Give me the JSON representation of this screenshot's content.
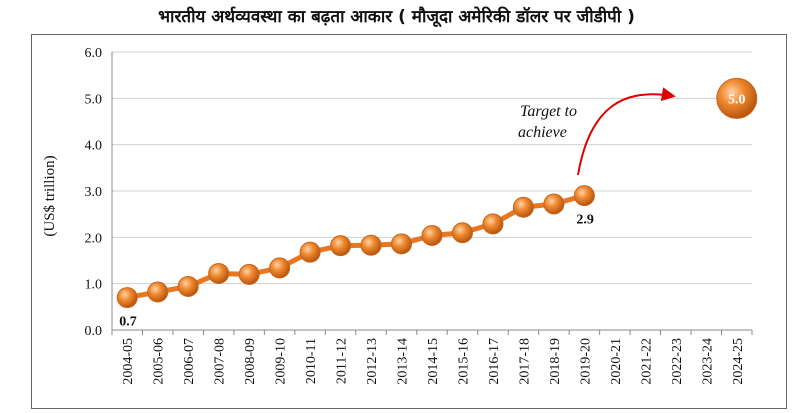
{
  "title": "भारतीय अर्थव्यवस्था का बढ़ता आकार ( मौजूदा अमेरिकी डॉलर पर जीडीपी )",
  "chart_data": {
    "type": "line",
    "title": "भारतीय अर्थव्यवस्था का बढ़ता आकार ( मौजूदा अमेरिकी डॉलर पर जीडीपी )",
    "xlabel": "",
    "ylabel": "(US$ trillion)",
    "ylim": [
      0,
      6
    ],
    "yticks": [
      "0.0",
      "1.0",
      "2.0",
      "3.0",
      "4.0",
      "5.0",
      "6.0"
    ],
    "grid": true,
    "categories": [
      "2004-05",
      "2005-06",
      "2006-07",
      "2007-08",
      "2008-09",
      "2009-10",
      "2010-11",
      "2011-12",
      "2012-13",
      "2013-14",
      "2014-15",
      "2015-16",
      "2016-17",
      "2017-18",
      "2018-19",
      "2019-20",
      "2020-21",
      "2021-22",
      "2022-23",
      "2023-24",
      "2024-25"
    ],
    "series": [
      {
        "values": [
          0.7,
          0.82,
          0.94,
          1.22,
          1.2,
          1.34,
          1.68,
          1.82,
          1.83,
          1.86,
          2.04,
          2.1,
          2.29,
          2.65,
          2.72,
          2.9,
          null,
          null,
          null,
          null,
          null
        ],
        "color": "#e87722"
      }
    ],
    "data_labels": [
      {
        "category": "2004-05",
        "text": "0.7"
      },
      {
        "category": "2019-20",
        "text": "2.9"
      }
    ],
    "target": {
      "category": "2024-25",
      "value": 5.0,
      "label": "5.0"
    },
    "annotation": [
      "Target to",
      "achieve"
    ],
    "arrow_color": "#e00000"
  }
}
